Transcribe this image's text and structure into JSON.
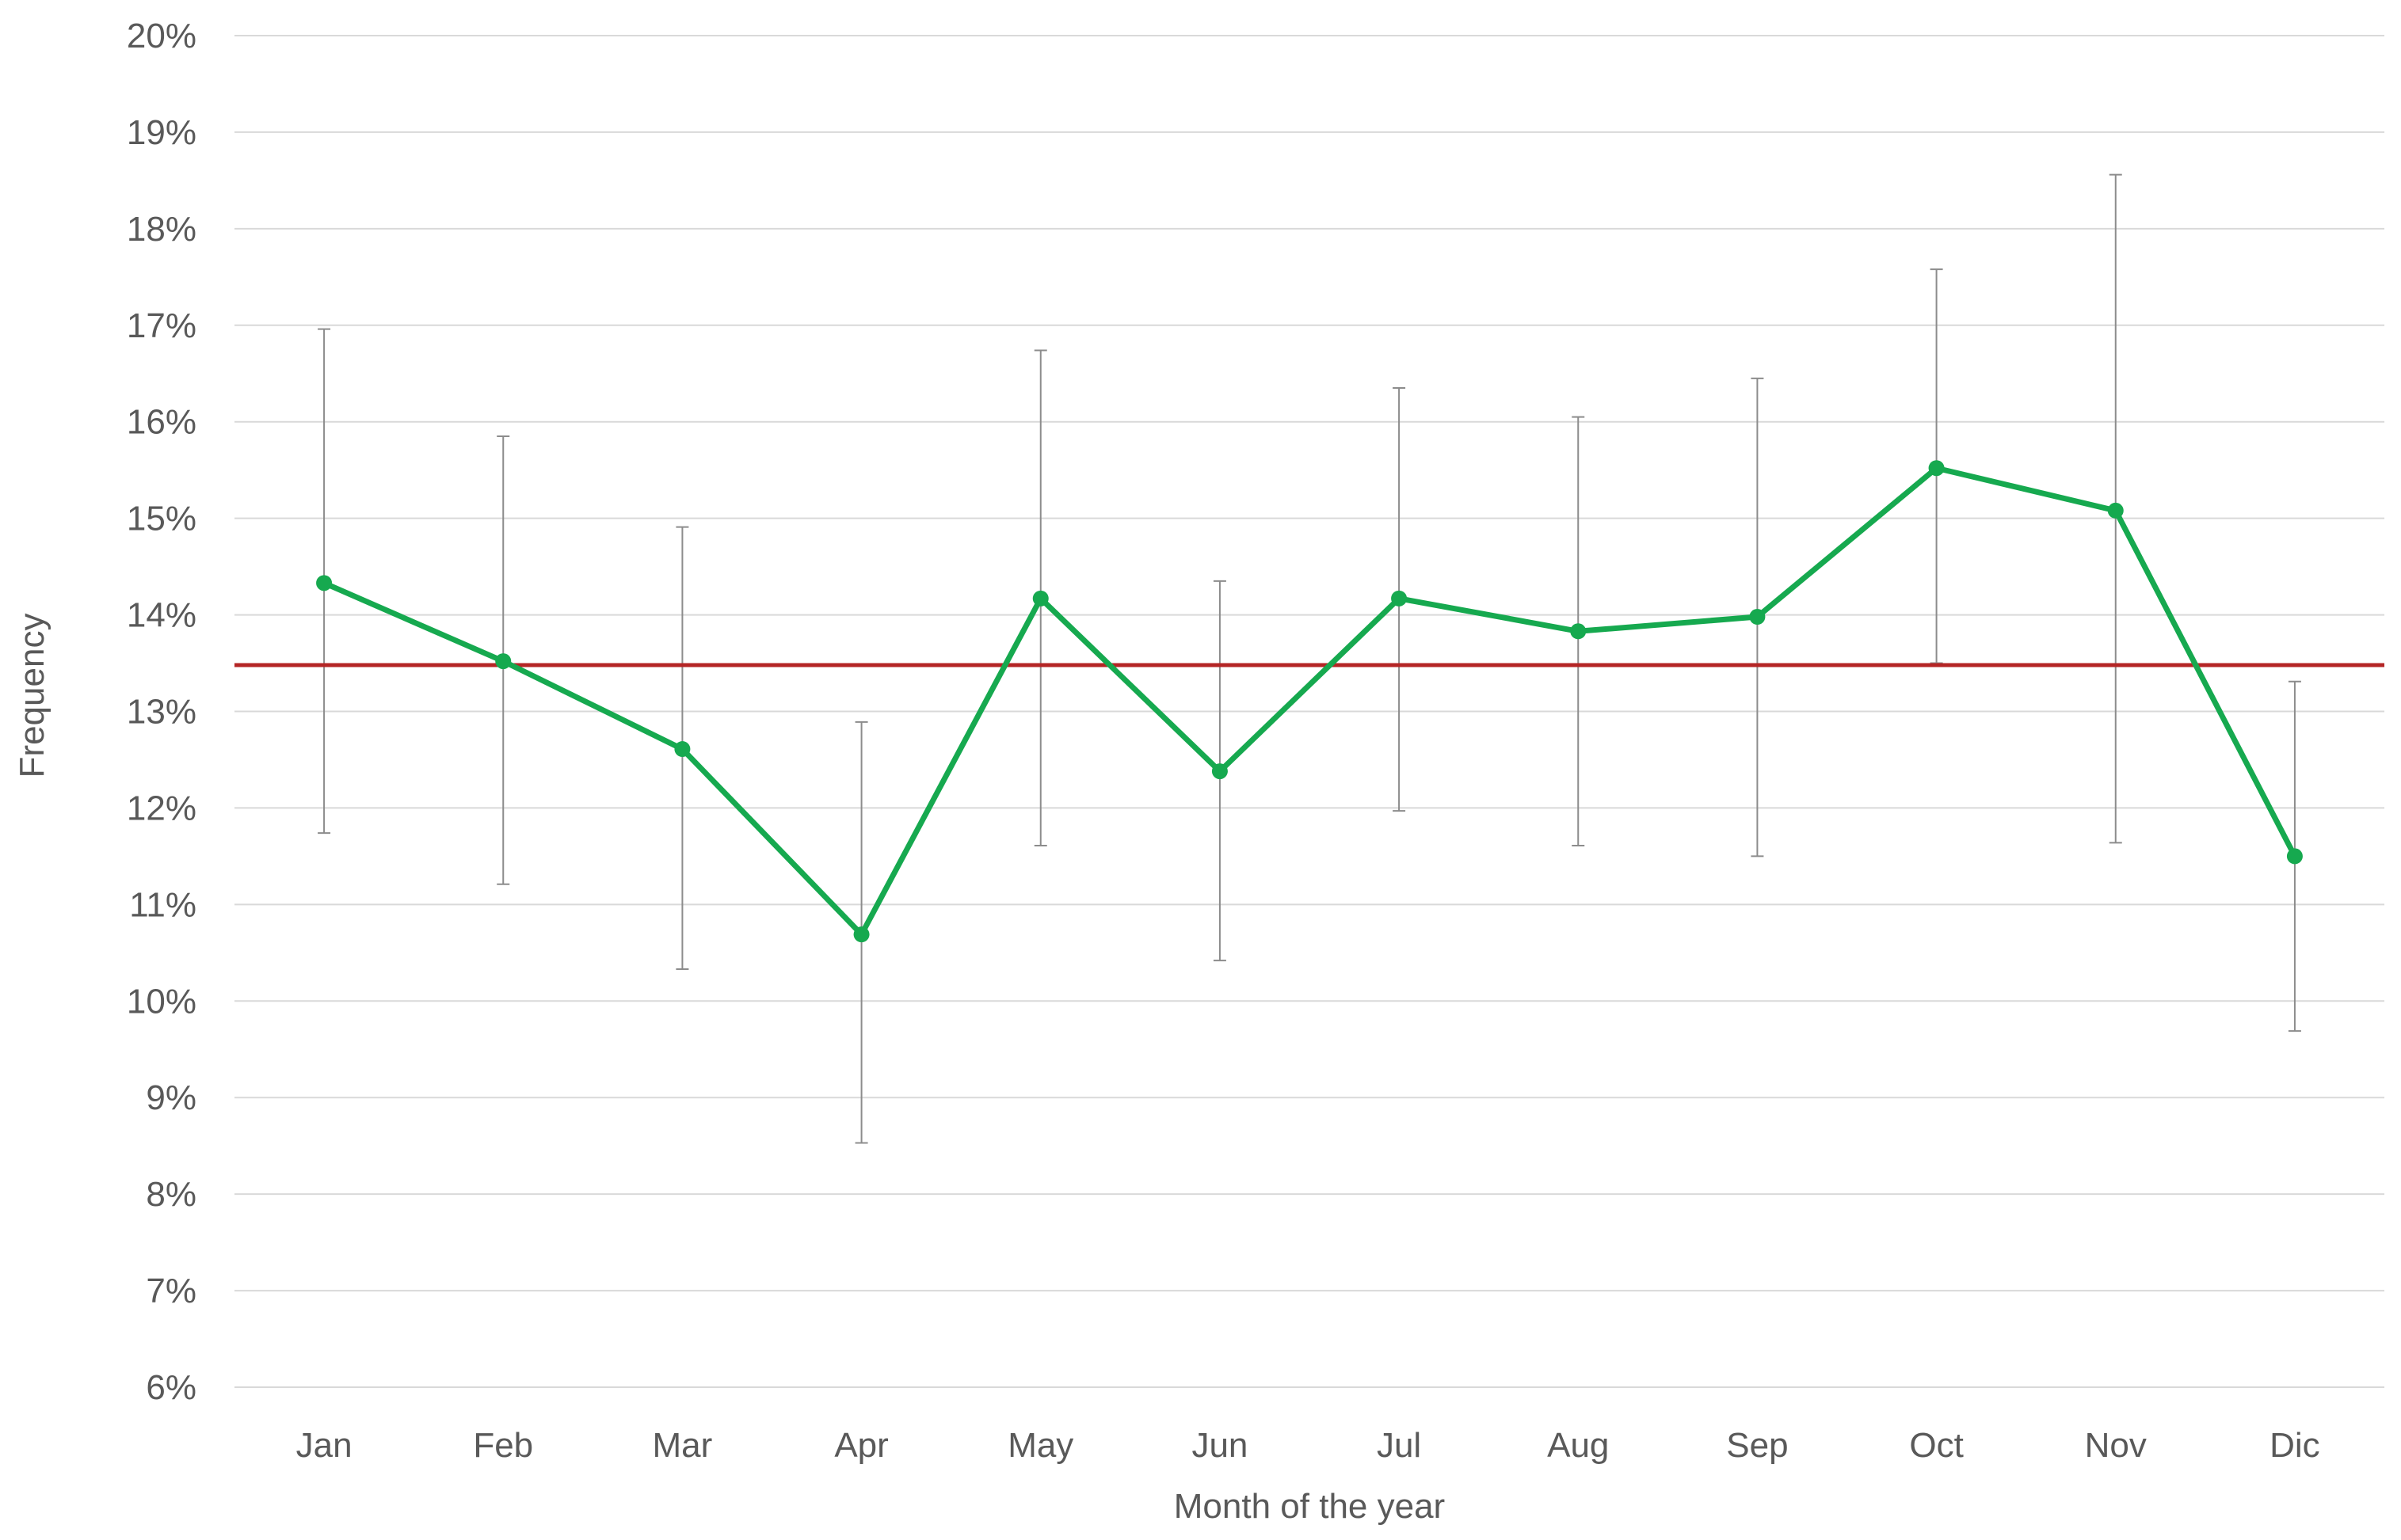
{
  "chart_data": {
    "type": "line",
    "xlabel": "Month of the year",
    "ylabel": "Frequency",
    "categories": [
      "Jan",
      "Feb",
      "Mar",
      "Apr",
      "May",
      "Jun",
      "Jul",
      "Aug",
      "Sep",
      "Oct",
      "Nov",
      "Dic"
    ],
    "ylim": [
      6,
      20
    ],
    "y_ticks": [
      6,
      7,
      8,
      9,
      10,
      11,
      12,
      13,
      14,
      15,
      16,
      17,
      18,
      19,
      20
    ],
    "y_tick_format": "percent",
    "grid": true,
    "series": [
      {
        "values": [
          14.33,
          13.52,
          12.61,
          10.69,
          14.17,
          12.38,
          14.17,
          13.83,
          13.98,
          15.52,
          15.08,
          11.5
        ],
        "error_low": [
          11.74,
          11.21,
          10.33,
          8.53,
          11.61,
          10.42,
          11.97,
          11.61,
          11.5,
          13.5,
          11.64,
          9.69
        ],
        "error_high": [
          16.96,
          15.85,
          14.91,
          12.89,
          16.74,
          14.35,
          16.35,
          16.05,
          16.45,
          17.58,
          18.56,
          13.31
        ],
        "color": "#16a94f"
      }
    ],
    "reference_lines": [
      {
        "y": 13.48,
        "color": "#b42525"
      }
    ],
    "colors": {
      "grid": "#d9d9d9",
      "error_bar": "#8c8c8c",
      "text": "#595959"
    }
  }
}
